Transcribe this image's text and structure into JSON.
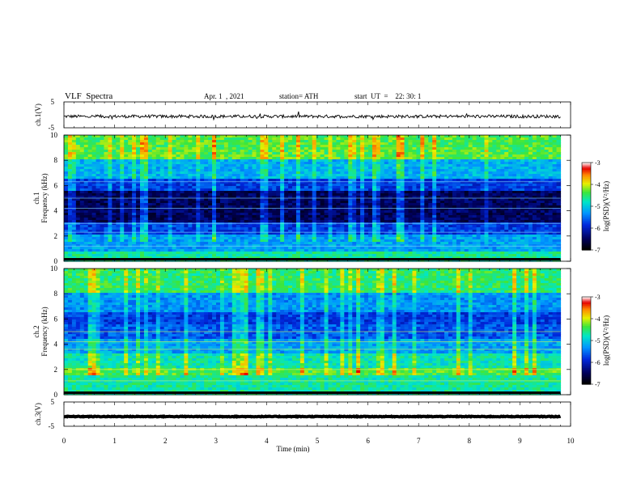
{
  "header": {
    "title": "VLF  Spectra",
    "date": "Apr. 1  , 2021",
    "station": "station= ATH",
    "start": "start  UT  =    22: 30: 1"
  },
  "chart_data": [
    {
      "type": "line",
      "name": "ch1-waveform",
      "ylabel": "ch.1(V)",
      "yticks": [
        "5",
        "-5"
      ],
      "ylim": [
        -5,
        5
      ],
      "xlim": [
        0,
        10
      ],
      "data_xmax": 9.8,
      "baseline": -0.6,
      "noise_amplitude": 0.6
    },
    {
      "type": "heatmap",
      "name": "ch1-spectrogram",
      "ylabel": "ch.1\nFrequency (kHz)",
      "ylabel_ch": "ch.1",
      "ylabel_freq": "Frequency (kHz)",
      "yticks": [
        "0",
        "2",
        "4",
        "6",
        "8",
        "10"
      ],
      "ylim": [
        0,
        10
      ],
      "xlim": [
        0,
        10
      ],
      "data_xmax": 9.8,
      "colorbar": {
        "label": "log(PSD)(V²/Hz)",
        "ticks": [
          "-3",
          "-4",
          "-5",
          "-6",
          "-7"
        ],
        "range": [
          -7,
          -3
        ]
      }
    },
    {
      "type": "heatmap",
      "name": "ch2-spectrogram",
      "ylabel": "ch.2\nFrequency (kHz)",
      "ylabel_ch": "ch.2",
      "ylabel_freq": "Frequency (kHz)",
      "yticks": [
        "0",
        "2",
        "4",
        "6",
        "8",
        "10"
      ],
      "ylim": [
        0,
        10
      ],
      "xlim": [
        0,
        10
      ],
      "data_xmax": 9.8,
      "colorbar": {
        "label": "log(PSD)(V²/Hz)",
        "ticks": [
          "-3",
          "-4",
          "-5",
          "-6",
          "-7"
        ],
        "range": [
          -7,
          -3
        ]
      }
    },
    {
      "type": "line",
      "name": "ch3-waveform",
      "ylabel": "ch.3(V)",
      "yticks": [
        "5",
        "-5"
      ],
      "ylim": [
        -5,
        5
      ],
      "xlim": [
        0,
        10
      ],
      "data_xmax": 9.8,
      "baseline": -1.0,
      "noise_amplitude": 0.15
    }
  ],
  "xaxis": {
    "label": "Time  (min)",
    "ticks": [
      "0",
      "1",
      "2",
      "3",
      "4",
      "5",
      "6",
      "7",
      "8",
      "9",
      "10"
    ]
  }
}
